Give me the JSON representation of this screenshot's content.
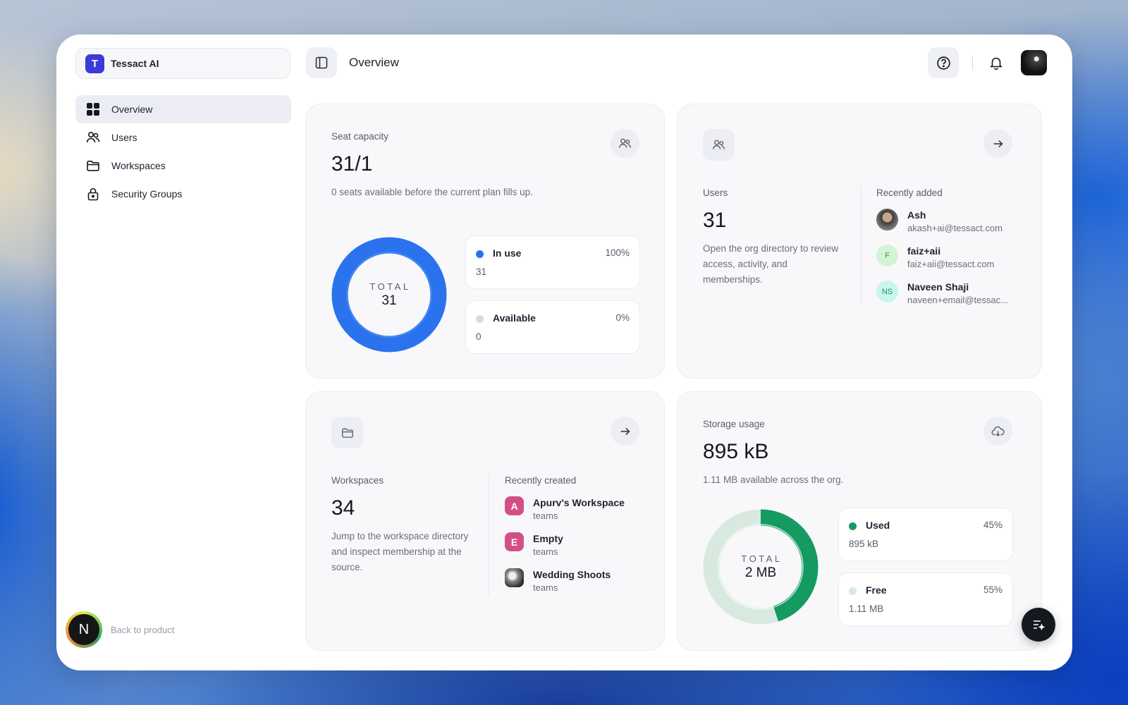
{
  "sidebar": {
    "brand_initial": "T",
    "brand_name": "Tessact AI",
    "items": [
      {
        "label": "Overview",
        "icon": "grid-icon",
        "active": true
      },
      {
        "label": "Users",
        "icon": "users-icon"
      },
      {
        "label": "Workspaces",
        "icon": "folder-icon"
      },
      {
        "label": "Security Groups",
        "icon": "lock-icon"
      }
    ],
    "back_badge": "N",
    "back_label": "Back to product"
  },
  "header": {
    "title": "Overview",
    "icons": [
      "sidebar-toggle-icon",
      "help-icon",
      "bell-icon"
    ]
  },
  "seat_card": {
    "label": "Seat capacity",
    "value": "31/1",
    "description": "0 seats available before the current plan fills up.",
    "total_label": "TOTAL",
    "total_value": "31",
    "legend": [
      {
        "name": "In use",
        "pct": "100%",
        "value": "31",
        "color": "#2b73ee"
      },
      {
        "name": "Available",
        "pct": "0%",
        "value": "0",
        "color": "#d5dbe8"
      }
    ]
  },
  "users_card": {
    "label": "Users",
    "value": "31",
    "description": "Open the org directory to review access, activity, and memberships.",
    "recent_label": "Recently added",
    "recent": [
      {
        "initials": "",
        "name": "Ash",
        "email": "akash+ai@tessact.com"
      },
      {
        "initials": "F",
        "name": "faiz+aii",
        "email": "faiz+aii@tessact.com"
      },
      {
        "initials": "NS",
        "name": "Naveen Shaji",
        "email": "naveen+email@tessac..."
      }
    ]
  },
  "workspaces_card": {
    "label": "Workspaces",
    "value": "34",
    "description": "Jump to the workspace directory and inspect membership at the source.",
    "recent_label": "Recently created",
    "recent": [
      {
        "initial": "A",
        "name": "Apurv's Workspace",
        "type": "teams",
        "color": "#d14f86"
      },
      {
        "initial": "E",
        "name": "Empty",
        "type": "teams",
        "color": "#d14f86"
      },
      {
        "initial": "",
        "name": "Wedding Shoots",
        "type": "teams",
        "color": "#777777"
      }
    ]
  },
  "storage_card": {
    "label": "Storage usage",
    "value": "895 kB",
    "description": "1.11 MB available across the org.",
    "total_label": "TOTAL",
    "total_value": "2 MB",
    "legend": [
      {
        "name": "Used",
        "pct": "45%",
        "value": "895 kB",
        "color": "#159a62"
      },
      {
        "name": "Free",
        "pct": "55%",
        "value": "1.11 MB",
        "color": "#d8e9e0"
      }
    ]
  },
  "chart_data": [
    {
      "type": "pie",
      "categories": [
        "In use",
        "Available"
      ],
      "values": [
        100,
        0
      ]
    },
    {
      "type": "pie",
      "categories": [
        "Used",
        "Free"
      ],
      "values": [
        45,
        55
      ]
    }
  ]
}
